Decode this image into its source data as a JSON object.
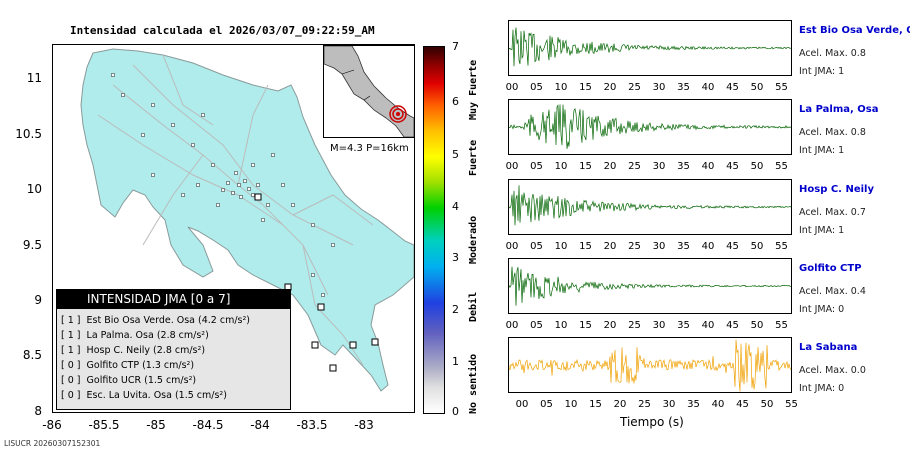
{
  "map": {
    "title": "Intensidad calculada el 2026/03/07_09:22:59_AM",
    "y_ticks": [
      "11",
      "10.5",
      "10",
      "9.5",
      "9",
      "8.5",
      "8"
    ],
    "x_ticks": [
      "-86",
      "-85.5",
      "-85",
      "-84.5",
      "-84",
      "-83.5",
      "-83"
    ],
    "inset_label": "M=4.3 P=16km",
    "land_color": "#b0ecec",
    "legend": {
      "title": "INTENSIDAD JMA [0 a 7]",
      "rows": [
        {
          "level": "[ 1 ]",
          "text": "Est Bio Osa Verde. Osa (4.2 cm/s²)"
        },
        {
          "level": "[ 1 ]",
          "text": "La Palma. Osa (2.8 cm/s²)"
        },
        {
          "level": "[ 1 ]",
          "text": "Hosp C. Neily (2.8 cm/s²)"
        },
        {
          "level": "[ 0 ]",
          "text": "Golfito CTP (1.3 cm/s²)"
        },
        {
          "level": "[ 0 ]",
          "text": "Golfito UCR (1.5 cm/s²)"
        },
        {
          "level": "[ 0 ]",
          "text": "Esc. La Uvita. Osa (1.5 cm/s²)"
        }
      ]
    }
  },
  "colorbar": {
    "ticks": [
      "7",
      "6",
      "5",
      "4",
      "3",
      "2",
      "1",
      "0"
    ],
    "words": [
      "Muy Fuerte",
      "Fuerte",
      "Moderado",
      "Debil",
      "No sentido"
    ]
  },
  "traces": {
    "x_ticks": [
      "00",
      "05",
      "10",
      "15",
      "20",
      "25",
      "30",
      "35",
      "40",
      "45",
      "50",
      "55"
    ],
    "xlabel": "Tiempo (s)",
    "stations": [
      {
        "name": "Est Bio Osa Verde, Osa",
        "acel": "Acel. Max. 0.8",
        "int": "Int JMA: 1",
        "color": "#006400"
      },
      {
        "name": "La Palma, Osa",
        "acel": "Acel. Max. 0.8",
        "int": "Int JMA: 1",
        "color": "#006400"
      },
      {
        "name": "Hosp C. Neily",
        "acel": "Acel. Max. 0.7",
        "int": "Int JMA: 1",
        "color": "#006400"
      },
      {
        "name": "Golfito CTP",
        "acel": "Acel. Max. 0.4",
        "int": "Int JMA: 0",
        "color": "#006400"
      },
      {
        "name": "La Sabana",
        "acel": "Acel. Max. 0.0",
        "int": "Int JMA: 0",
        "color": "#f0a000"
      }
    ]
  },
  "footer": "LISUCR 20260307152301"
}
